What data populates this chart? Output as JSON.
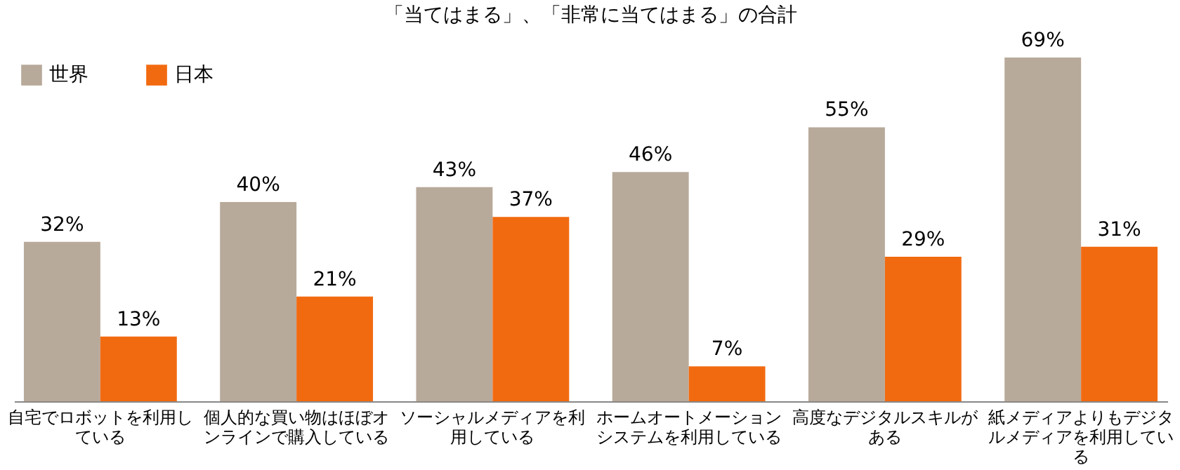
{
  "chart_data": {
    "type": "bar",
    "title": "「当てはまる」、「非常に当てはまる」の合計",
    "categories": [
      "自宅でロボットを利用している",
      "個人的な買い物はほぼオンラインで購入している",
      "ソーシャルメディアを利用している",
      "ホームオートメーションシステムを利用している",
      "高度なデジタルスキルがある",
      "紙メディアよりもデジタルメディアを利用している"
    ],
    "series": [
      {
        "name": "世界",
        "color": "#b8aa9a",
        "values": [
          32,
          40,
          43,
          46,
          55,
          69
        ],
        "value_labels": [
          "32%",
          "40%",
          "43%",
          "46%",
          "55%",
          "69%"
        ]
      },
      {
        "name": "日本",
        "color": "#f26a10",
        "values": [
          13,
          21,
          37,
          7,
          29,
          31
        ],
        "value_labels": [
          "13%",
          "21%",
          "37%",
          "7%",
          "29%",
          "31%"
        ]
      }
    ],
    "legend": "top left"
  }
}
